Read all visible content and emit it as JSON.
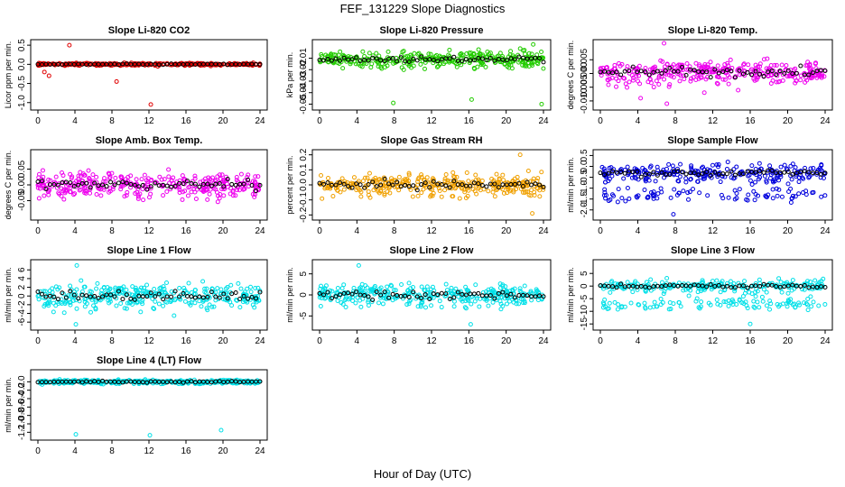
{
  "figure_title": "FEF_131229  Slope Diagnostics",
  "x_axis_label": "Hour of Day (UTC)",
  "colors": {
    "red": "#e00000",
    "green": "#22cc00",
    "magenta": "#ee00ee",
    "orange": "#f0a000",
    "blue": "#0000dd",
    "cyan": "#00e0e8",
    "black": "#000000"
  },
  "chart_data": [
    {
      "type": "scatter",
      "title": "Slope Li-820 CO2",
      "ylabel": "Licor ppm per min.",
      "color": "red",
      "xlim": [
        0,
        24
      ],
      "ylim": [
        -1.1,
        0.55
      ],
      "yticks": [
        -1,
        -0.5,
        0,
        0.5
      ],
      "yticklabels": [
        "-1.0",
        "-0.5",
        "0.0",
        "0.5"
      ],
      "xticks": [
        0,
        4,
        8,
        12,
        16,
        20,
        24
      ],
      "spread": 0.03,
      "mean_pattern": 0,
      "outliers": [
        [
          3.4,
          0.5
        ],
        [
          0.7,
          -0.2
        ],
        [
          12.2,
          -1.05
        ],
        [
          8.5,
          -0.45
        ],
        [
          1.2,
          -0.3
        ]
      ]
    },
    {
      "type": "scatter",
      "title": "Slope Li-820 Pressure",
      "ylabel": "kPa per min.",
      "color": "green",
      "xlim": [
        0,
        24
      ],
      "ylim": [
        -0.052,
        0.003
      ],
      "yticks": [
        -0.05,
        -0.04,
        -0.03,
        -0.02,
        -0.01
      ],
      "yticklabels": [
        "-0.05",
        "-0.04",
        "-0.03",
        "-0.02",
        "-0.01"
      ],
      "xticks": [
        0,
        4,
        8,
        12,
        16,
        20,
        24
      ],
      "spread": 0.006,
      "mean_pattern": -0.011,
      "outliers": [
        [
          7.9,
          -0.049
        ],
        [
          16.3,
          -0.046
        ],
        [
          23.8,
          -0.05
        ],
        [
          22.9,
          0.002
        ]
      ]
    },
    {
      "type": "scatter",
      "title": "Slope Li-820 Temp.",
      "ylabel": "degrees C per min.",
      "color": "magenta",
      "xlim": [
        0,
        24
      ],
      "ylim": [
        -0.012,
        0.011
      ],
      "yticks": [
        -0.01,
        -0.005,
        0,
        0.005
      ],
      "yticklabels": [
        "-0.010",
        "-0.005",
        "0.000",
        "0.005"
      ],
      "xticks": [
        0,
        4,
        8,
        12,
        16,
        20,
        24
      ],
      "spread": 0.0035,
      "mean_pattern": 0.0005,
      "outliers": [
        [
          6.8,
          0.011
        ],
        [
          7.1,
          -0.011
        ],
        [
          4.3,
          -0.009
        ],
        [
          11.1,
          -0.007
        ]
      ]
    },
    {
      "type": "scatter",
      "title": "Slope Amb. Box Temp.",
      "ylabel": "degrees C per min.",
      "color": "magenta",
      "xlim": [
        0,
        24
      ],
      "ylim": [
        -0.1,
        0.1
      ],
      "yticks": [
        -0.05,
        0,
        0.05
      ],
      "yticklabels": [
        "-0.05",
        "0.00",
        "0.05"
      ],
      "xticks": [
        0,
        4,
        8,
        12,
        16,
        20,
        24
      ],
      "spread": 0.035,
      "mean_pattern": 0,
      "outliers": []
    },
    {
      "type": "scatter",
      "title": "Slope Gas Stream RH",
      "ylabel": "percent per min.",
      "color": "orange",
      "xlim": [
        0,
        24
      ],
      "ylim": [
        -0.21,
        0.21
      ],
      "yticks": [
        -0.2,
        -0.1,
        0,
        0.1,
        0.2
      ],
      "yticklabels": [
        "-0.2",
        "-0.1",
        "0.0",
        "0.1",
        "0.2"
      ],
      "xticks": [
        0,
        4,
        8,
        12,
        16,
        20,
        24
      ],
      "spread": 0.06,
      "mean_pattern": 0,
      "outliers": [
        [
          22.8,
          -0.19
        ],
        [
          21.5,
          0.2
        ]
      ]
    },
    {
      "type": "scatter",
      "title": "Slope Sample Flow",
      "ylabel": "ml/min per min.",
      "color": "blue",
      "xlim": [
        0,
        24
      ],
      "ylim": [
        -2.3,
        0.6
      ],
      "yticks": [
        -2,
        -1.5,
        -1,
        -0.5,
        0,
        0.5
      ],
      "yticklabels": [
        "-2.0",
        "-1.5",
        "-1.0",
        "-0.5",
        "0.0",
        "0.5"
      ],
      "xticks": [
        0,
        4,
        8,
        12,
        16,
        20,
        24
      ],
      "spread": 0.35,
      "mean_pattern": -0.3,
      "outliers": [
        [
          7.8,
          -2.2
        ]
      ]
    },
    {
      "type": "scatter",
      "title": "Slope Line 1 Flow",
      "ylabel": "ml/min per min.",
      "color": "cyan",
      "xlim": [
        0,
        24
      ],
      "ylim": [
        -7,
        7.5
      ],
      "yticks": [
        -6,
        -4,
        -2,
        0,
        2,
        4,
        6
      ],
      "yticklabels": [
        "-6",
        "-4",
        "-2",
        "0",
        "2",
        "4",
        "6"
      ],
      "xticks": [
        0,
        4,
        8,
        12,
        16,
        20,
        24
      ],
      "spread": 2.4,
      "mean_pattern": 0,
      "outliers": [
        [
          4.1,
          -6.5
        ],
        [
          4.2,
          7
        ]
      ]
    },
    {
      "type": "scatter",
      "title": "Slope Line 2 Flow",
      "ylabel": "ml/min per min.",
      "color": "cyan",
      "xlim": [
        0,
        24
      ],
      "ylim": [
        -7.5,
        7.5
      ],
      "yticks": [
        -5,
        0,
        5
      ],
      "yticklabels": [
        "-5",
        "0",
        "5"
      ],
      "xticks": [
        0,
        4,
        8,
        12,
        16,
        20,
        24
      ],
      "spread": 2.2,
      "mean_pattern": 0,
      "outliers": [
        [
          16.2,
          -7
        ],
        [
          4.2,
          7
        ]
      ]
    },
    {
      "type": "scatter",
      "title": "Slope Line 3 Flow",
      "ylabel": "ml/min per min.",
      "color": "cyan",
      "xlim": [
        0,
        24
      ],
      "ylim": [
        -16,
        9
      ],
      "yticks": [
        -15,
        -10,
        -5,
        0,
        5
      ],
      "yticklabels": [
        "-15",
        "-10",
        "-5",
        "0",
        "5"
      ],
      "xticks": [
        0,
        4,
        8,
        12,
        16,
        20,
        24
      ],
      "spread": 2,
      "mean_pattern": 0,
      "outliers": [
        [
          16,
          -15
        ]
      ]
    },
    {
      "type": "scatter",
      "title": "Slope Line 4 (LT) Flow",
      "ylabel": "ml/min per min.",
      "color": "cyan",
      "xlim": [
        0,
        24
      ],
      "ylim": [
        -1.3,
        0.2
      ],
      "yticks": [
        -1.2,
        -1,
        -0.8,
        -0.6,
        -0.4,
        -0.2,
        0
      ],
      "yticklabels": [
        "-1.2",
        "-1.0",
        "-0.8",
        "-0.6",
        "-0.4",
        "-0.2",
        "0.0"
      ],
      "xticks": [
        0,
        4,
        8,
        12,
        16,
        20,
        24
      ],
      "spread": 0.04,
      "mean_pattern": 0,
      "outliers": [
        [
          4.1,
          -1.25
        ],
        [
          12.1,
          -1.27
        ],
        [
          19.8,
          -1.15
        ]
      ]
    }
  ]
}
